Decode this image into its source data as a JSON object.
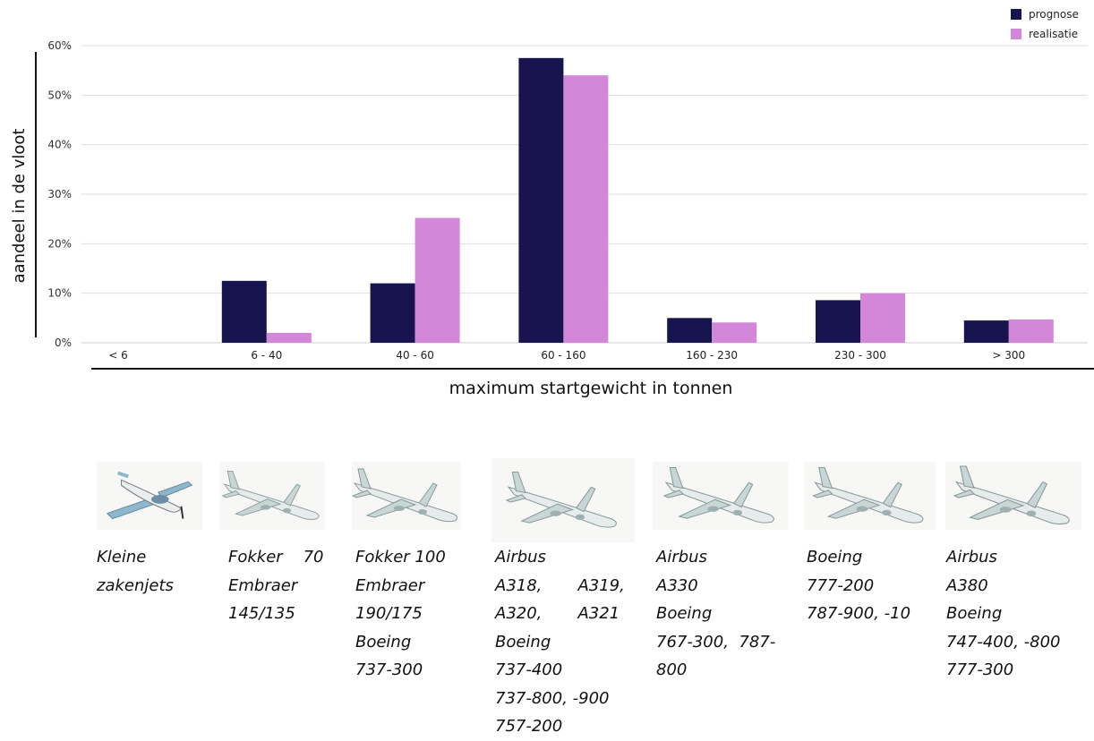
{
  "chart_data": {
    "type": "bar",
    "categories": [
      "< 6",
      "6 - 40",
      "40 - 60",
      "60 - 160",
      "160 - 230",
      "230 - 300",
      "> 300"
    ],
    "series": [
      {
        "name": "prognose",
        "values": [
          0,
          12.5,
          12,
          57.5,
          5,
          8.6,
          4.5
        ],
        "color": "#181450"
      },
      {
        "name": "realisatie",
        "values": [
          0,
          2,
          25.2,
          54,
          4.1,
          10,
          4.7
        ],
        "color": "#d387d8"
      }
    ],
    "xlabel": "maximum startgewicht in tonnen",
    "ylabel": "aandeel in de vloot",
    "ylim": [
      0,
      60
    ],
    "yticks": [
      "0%",
      "10%",
      "20%",
      "30%",
      "40%",
      "50%",
      "60%"
    ],
    "grid": true,
    "legend": "top-right"
  },
  "aircraft": [
    {
      "icon": "business-jet-icon",
      "caption": [
        "Kleine",
        "zakenjets"
      ]
    },
    {
      "icon": "regional-jet-icon",
      "caption": [
        "Fokker    70",
        "Embraer",
        "145/135"
      ]
    },
    {
      "icon": "regional-airliner-icon",
      "caption": [
        "Fokker 100",
        "Embraer",
        "190/175",
        "Boeing",
        "737-300"
      ]
    },
    {
      "icon": "narrowbody-airliner-icon",
      "caption": [
        "Airbus",
        "A318,       A319,",
        "A320,       A321",
        "Boeing",
        "737-400",
        "737-800, -900",
        "757-200"
      ]
    },
    {
      "icon": "widebody-airliner-icon",
      "caption": [
        "Airbus",
        "A330",
        "Boeing",
        "767-300,  787-",
        "800"
      ]
    },
    {
      "icon": "long-haul-twinjet-icon",
      "caption": [
        "Boeing",
        "777-200",
        "787-900, -10"
      ]
    },
    {
      "icon": "jumbo-jet-icon",
      "caption": [
        "Airbus",
        "A380",
        "Boeing",
        "747-400, -800",
        "777-300"
      ]
    }
  ]
}
